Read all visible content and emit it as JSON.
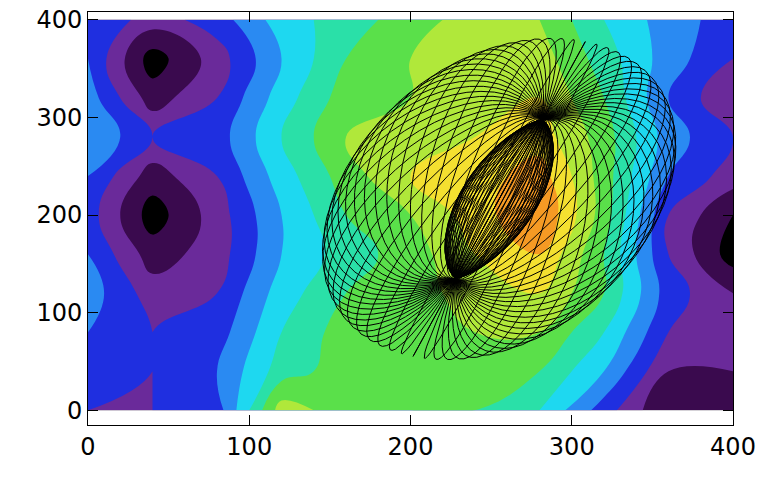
{
  "chart_data": {
    "type": "contour",
    "xlim": [
      0,
      400
    ],
    "ylim": [
      -15,
      408
    ],
    "xticks": [
      0,
      100,
      200,
      300,
      400
    ],
    "yticks": [
      0,
      100,
      200,
      300,
      400
    ],
    "x": [
      0,
      40,
      80,
      120,
      160,
      200,
      240,
      280,
      320,
      360,
      400
    ],
    "y": [
      0,
      40,
      80,
      120,
      160,
      200,
      240,
      280,
      320,
      360,
      400
    ],
    "z": [
      [
        3,
        3,
        3.5,
        8.5,
        7.5,
        7,
        7,
        6,
        3.5,
        1,
        2
      ],
      [
        3.5,
        3,
        4,
        6.5,
        7.5,
        7.5,
        7.5,
        7,
        5,
        2,
        2
      ],
      [
        4,
        3,
        3.5,
        6,
        7.5,
        7.5,
        8,
        8,
        6,
        3,
        2.5
      ],
      [
        4.5,
        2.5,
        3,
        5.5,
        7,
        7.5,
        8.5,
        9,
        7,
        3.5,
        2
      ],
      [
        4,
        1.5,
        2.5,
        5,
        6.5,
        7.5,
        9,
        10,
        7,
        3,
        0.5
      ],
      [
        3.5,
        0.5,
        2.5,
        5,
        7,
        8,
        9.5,
        11,
        7.5,
        3,
        1
      ],
      [
        4,
        1.5,
        3,
        5.5,
        7.5,
        9,
        9.5,
        10.5,
        7.5,
        4,
        2.5
      ],
      [
        5,
        3,
        3.5,
        6,
        8,
        8.5,
        9,
        9.5,
        7.5,
        4.5,
        3
      ],
      [
        4.5,
        1.5,
        3,
        5.5,
        7.5,
        8,
        9,
        9,
        7,
        4,
        2
      ],
      [
        4,
        0.5,
        2.5,
        5,
        7,
        8,
        9,
        8.5,
        6.5,
        4.5,
        3
      ],
      [
        4,
        2.5,
        3.5,
        5.5,
        6.5,
        7.5,
        8.5,
        8,
        6,
        4.5,
        3.5
      ]
    ],
    "zlim": [
      0,
      12
    ],
    "colors": [
      "#000000",
      "#3a0a4e",
      "#6a2a9a",
      "#1f2fe0",
      "#2a8af2",
      "#1ed8f0",
      "#2ae0a8",
      "#5ae04a",
      "#b0e83a",
      "#f4e030",
      "#f59a24",
      "#e82a10"
    ],
    "overlay": {
      "type": "torus",
      "axis_ends": [
        [
          228,
          135
        ],
        [
          282,
          298
        ]
      ],
      "half_width": 100,
      "half_length": 170,
      "color": "#000000"
    }
  }
}
